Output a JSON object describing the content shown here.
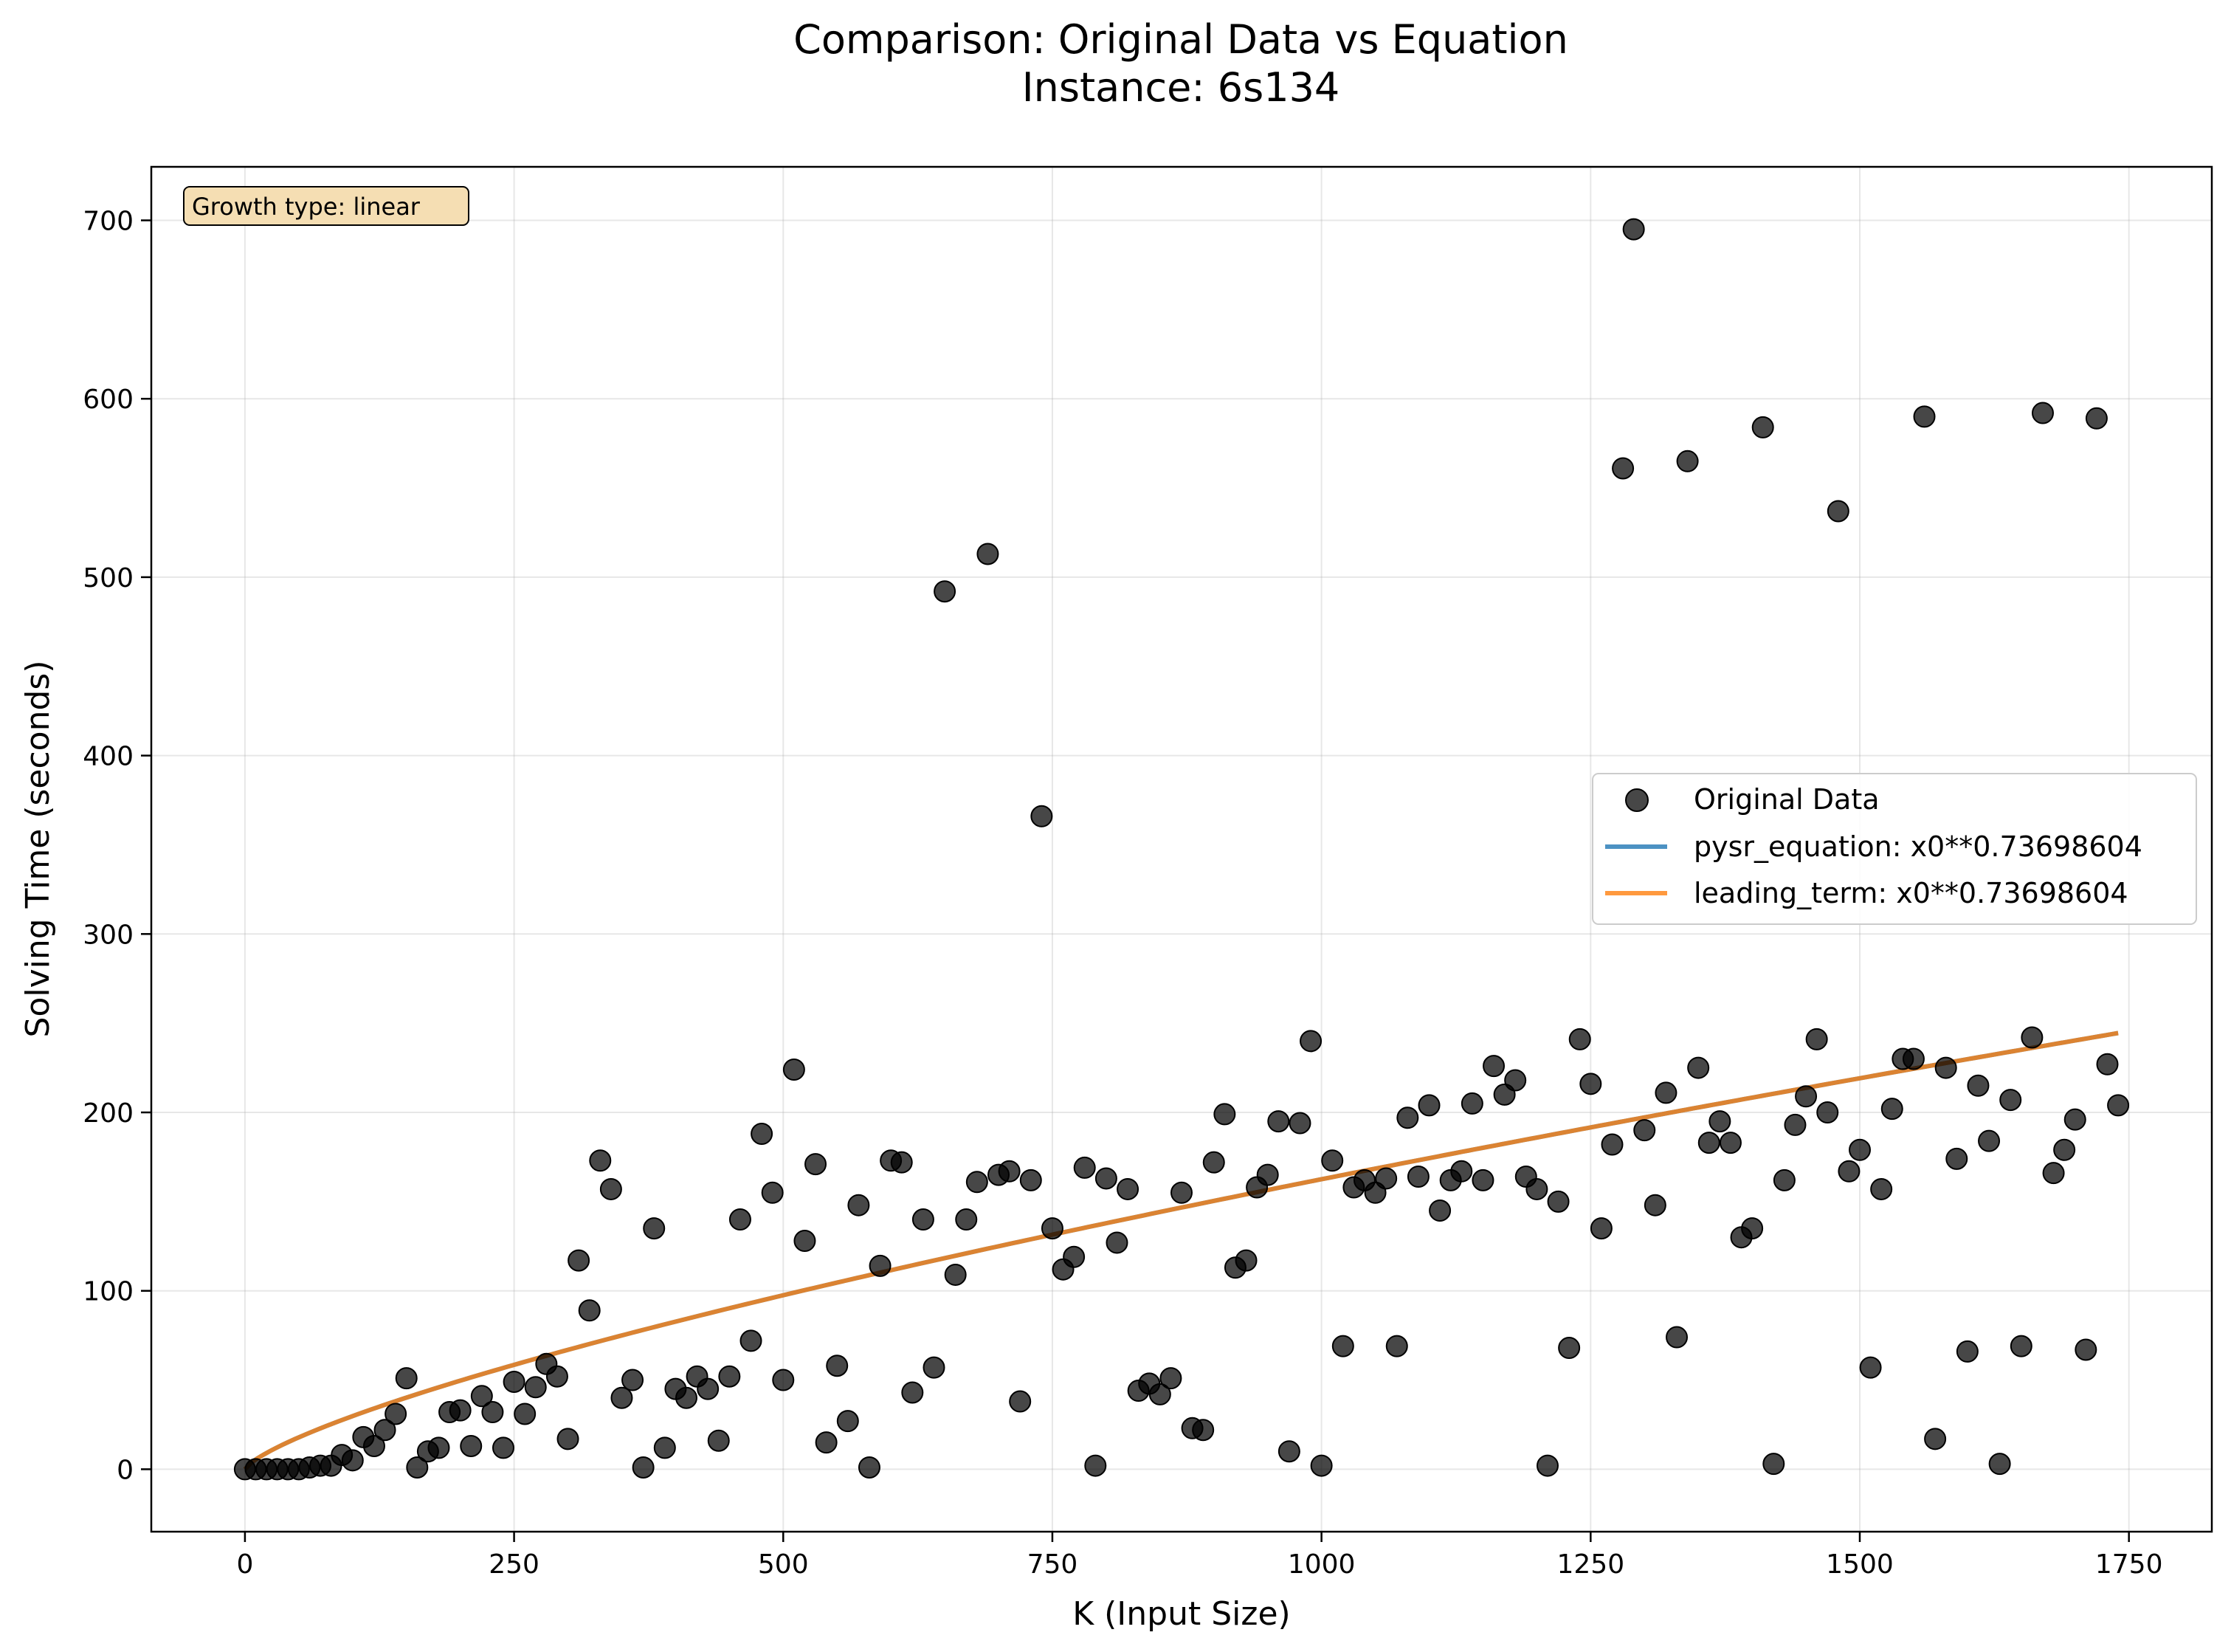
{
  "chart_data": {
    "type": "scatter",
    "title_line1": "Comparison: Original Data vs Equation",
    "title_line2": "Instance: 6s134",
    "xlabel": "K (Input Size)",
    "ylabel": "Solving Time (seconds)",
    "xlim": [
      -87,
      1827
    ],
    "ylim": [
      -35,
      730
    ],
    "xticks": [
      0,
      250,
      500,
      750,
      1000,
      1250,
      1500,
      1750
    ],
    "yticks": [
      0,
      100,
      200,
      300,
      400,
      500,
      600,
      700
    ],
    "grid": true,
    "legend_position": "center-right",
    "annotation": "Growth type: linear",
    "colors": {
      "scatter": "#000000",
      "pysr_line": "#1f77b4",
      "leading_line": "#ff7f0e",
      "annotation_bg": "#f5deb3"
    },
    "series": [
      {
        "name": "Original Data",
        "kind": "scatter",
        "points": [
          [
            0,
            0
          ],
          [
            10,
            0
          ],
          [
            20,
            0
          ],
          [
            30,
            0
          ],
          [
            40,
            0
          ],
          [
            50,
            0
          ],
          [
            60,
            1
          ],
          [
            70,
            2
          ],
          [
            80,
            2
          ],
          [
            90,
            8
          ],
          [
            100,
            5
          ],
          [
            110,
            18
          ],
          [
            120,
            13
          ],
          [
            130,
            22
          ],
          [
            140,
            31
          ],
          [
            150,
            51
          ],
          [
            160,
            1
          ],
          [
            170,
            10
          ],
          [
            180,
            12
          ],
          [
            190,
            32
          ],
          [
            200,
            33
          ],
          [
            210,
            13
          ],
          [
            220,
            41
          ],
          [
            230,
            32
          ],
          [
            240,
            12
          ],
          [
            250,
            49
          ],
          [
            260,
            31
          ],
          [
            270,
            46
          ],
          [
            280,
            59
          ],
          [
            290,
            52
          ],
          [
            300,
            17
          ],
          [
            310,
            117
          ],
          [
            320,
            89
          ],
          [
            330,
            173
          ],
          [
            340,
            157
          ],
          [
            350,
            40
          ],
          [
            360,
            50
          ],
          [
            370,
            1
          ],
          [
            380,
            135
          ],
          [
            390,
            12
          ],
          [
            400,
            45
          ],
          [
            410,
            40
          ],
          [
            420,
            52
          ],
          [
            430,
            45
          ],
          [
            440,
            16
          ],
          [
            450,
            52
          ],
          [
            460,
            140
          ],
          [
            470,
            72
          ],
          [
            480,
            188
          ],
          [
            490,
            155
          ],
          [
            500,
            50
          ],
          [
            510,
            224
          ],
          [
            520,
            128
          ],
          [
            530,
            171
          ],
          [
            540,
            15
          ],
          [
            550,
            58
          ],
          [
            560,
            27
          ],
          [
            570,
            148
          ],
          [
            580,
            1
          ],
          [
            590,
            114
          ],
          [
            600,
            173
          ],
          [
            610,
            172
          ],
          [
            620,
            43
          ],
          [
            630,
            140
          ],
          [
            640,
            57
          ],
          [
            650,
            492
          ],
          [
            660,
            109
          ],
          [
            670,
            140
          ],
          [
            680,
            161
          ],
          [
            690,
            513
          ],
          [
            700,
            165
          ],
          [
            710,
            167
          ],
          [
            720,
            38
          ],
          [
            730,
            162
          ],
          [
            740,
            366
          ],
          [
            750,
            135
          ],
          [
            760,
            112
          ],
          [
            770,
            119
          ],
          [
            780,
            169
          ],
          [
            790,
            2
          ],
          [
            800,
            163
          ],
          [
            810,
            127
          ],
          [
            820,
            157
          ],
          [
            830,
            44
          ],
          [
            840,
            48
          ],
          [
            850,
            42
          ],
          [
            860,
            51
          ],
          [
            870,
            155
          ],
          [
            880,
            23
          ],
          [
            890,
            22
          ],
          [
            900,
            172
          ],
          [
            910,
            199
          ],
          [
            920,
            113
          ],
          [
            930,
            117
          ],
          [
            940,
            158
          ],
          [
            950,
            165
          ],
          [
            960,
            195
          ],
          [
            970,
            10
          ],
          [
            980,
            194
          ],
          [
            990,
            240
          ],
          [
            1000,
            2
          ],
          [
            1010,
            173
          ],
          [
            1020,
            69
          ],
          [
            1030,
            158
          ],
          [
            1040,
            162
          ],
          [
            1050,
            155
          ],
          [
            1060,
            163
          ],
          [
            1070,
            69
          ],
          [
            1080,
            197
          ],
          [
            1090,
            164
          ],
          [
            1100,
            204
          ],
          [
            1110,
            145
          ],
          [
            1120,
            162
          ],
          [
            1130,
            167
          ],
          [
            1140,
            205
          ],
          [
            1150,
            162
          ],
          [
            1160,
            226
          ],
          [
            1170,
            210
          ],
          [
            1180,
            218
          ],
          [
            1190,
            164
          ],
          [
            1200,
            157
          ],
          [
            1210,
            2
          ],
          [
            1220,
            150
          ],
          [
            1230,
            68
          ],
          [
            1240,
            241
          ],
          [
            1250,
            216
          ],
          [
            1260,
            135
          ],
          [
            1270,
            182
          ],
          [
            1280,
            561
          ],
          [
            1290,
            695
          ],
          [
            1300,
            190
          ],
          [
            1310,
            148
          ],
          [
            1320,
            211
          ],
          [
            1330,
            74
          ],
          [
            1340,
            565
          ],
          [
            1350,
            225
          ],
          [
            1360,
            183
          ],
          [
            1370,
            195
          ],
          [
            1380,
            183
          ],
          [
            1390,
            130
          ],
          [
            1400,
            135
          ],
          [
            1410,
            584
          ],
          [
            1420,
            3
          ],
          [
            1430,
            162
          ],
          [
            1440,
            193
          ],
          [
            1450,
            209
          ],
          [
            1460,
            241
          ],
          [
            1470,
            200
          ],
          [
            1480,
            537
          ],
          [
            1490,
            167
          ],
          [
            1500,
            179
          ],
          [
            1510,
            57
          ],
          [
            1520,
            157
          ],
          [
            1530,
            202
          ],
          [
            1540,
            230
          ],
          [
            1550,
            230
          ],
          [
            1560,
            590
          ],
          [
            1570,
            17
          ],
          [
            1580,
            225
          ],
          [
            1590,
            174
          ],
          [
            1600,
            66
          ],
          [
            1610,
            215
          ],
          [
            1620,
            184
          ],
          [
            1630,
            3
          ],
          [
            1640,
            207
          ],
          [
            1650,
            69
          ],
          [
            1660,
            242
          ],
          [
            1670,
            592
          ],
          [
            1680,
            166
          ],
          [
            1690,
            179
          ],
          [
            1700,
            196
          ],
          [
            1710,
            67
          ],
          [
            1720,
            589
          ],
          [
            1730,
            227
          ],
          [
            1740,
            204
          ]
        ]
      },
      {
        "name": "pysr_equation: x0**0.73698604",
        "kind": "line",
        "exponent": 0.73698604,
        "x_range": [
          0,
          1740
        ]
      },
      {
        "name": "leading_term: x0**0.73698604",
        "kind": "line",
        "exponent": 0.73698604,
        "x_range": [
          0,
          1740
        ]
      }
    ]
  }
}
